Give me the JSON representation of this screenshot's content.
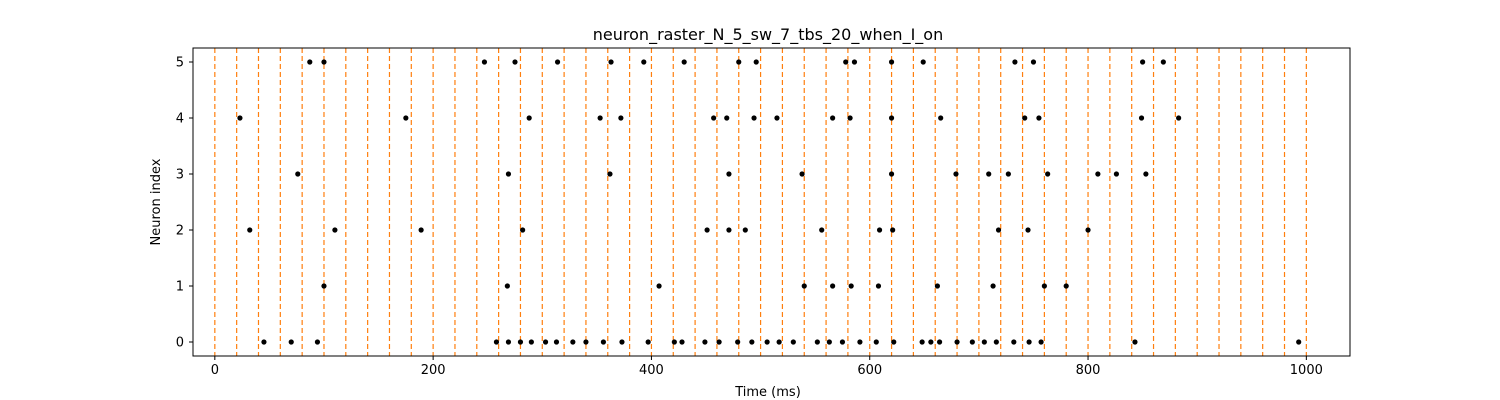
{
  "chart_data": {
    "type": "scatter",
    "title": "neuron_raster_N_5_sw_7_tbs_20_when_I_on",
    "xlabel": "Time (ms)",
    "ylabel": "Neuron index",
    "xlim": [
      -20,
      1040
    ],
    "ylim": [
      -0.25,
      5.25
    ],
    "x_ticks": [
      0,
      200,
      400,
      600,
      800,
      1000
    ],
    "y_ticks": [
      0,
      1,
      2,
      3,
      4,
      5
    ],
    "grid": false,
    "legend": "none",
    "marker_color": "#000000",
    "vline_color": "#ff7f0e",
    "vlines": [
      0,
      20,
      40,
      60,
      80,
      100,
      120,
      140,
      160,
      180,
      200,
      220,
      240,
      260,
      280,
      300,
      320,
      340,
      360,
      380,
      400,
      420,
      440,
      460,
      480,
      500,
      520,
      540,
      560,
      580,
      600,
      620,
      640,
      660,
      680,
      700,
      720,
      740,
      760,
      780,
      800,
      820,
      840,
      860,
      880,
      900,
      920,
      940,
      960,
      980,
      1000
    ],
    "spikes": [
      {
        "neuron": 5,
        "times": [
          87,
          100,
          247,
          275,
          314,
          363,
          393,
          430,
          480,
          496,
          578,
          586,
          620,
          649,
          733,
          750,
          850,
          869
        ]
      },
      {
        "neuron": 4,
        "times": [
          23,
          175,
          288,
          353,
          372,
          457,
          469,
          494,
          515,
          566,
          582,
          620,
          665,
          742,
          755,
          849,
          883
        ]
      },
      {
        "neuron": 3,
        "times": [
          76,
          269,
          362,
          471,
          538,
          620,
          679,
          709,
          727,
          763,
          809,
          826,
          853
        ]
      },
      {
        "neuron": 2,
        "times": [
          32,
          110,
          189,
          282,
          451,
          471,
          486,
          556,
          609,
          621,
          718,
          745,
          800
        ]
      },
      {
        "neuron": 1,
        "times": [
          100,
          407,
          268,
          540,
          566,
          583,
          608,
          662,
          713,
          760,
          780
        ]
      },
      {
        "neuron": 0,
        "times": [
          45,
          70,
          94,
          258,
          269,
          280,
          290,
          303,
          313,
          328,
          340,
          356,
          373,
          397,
          421,
          428,
          449,
          462,
          479,
          492,
          506,
          517,
          530,
          552,
          563,
          575,
          591,
          606,
          622,
          648,
          656,
          664,
          680,
          694,
          705,
          716,
          732,
          746,
          757,
          843,
          993
        ]
      }
    ]
  }
}
